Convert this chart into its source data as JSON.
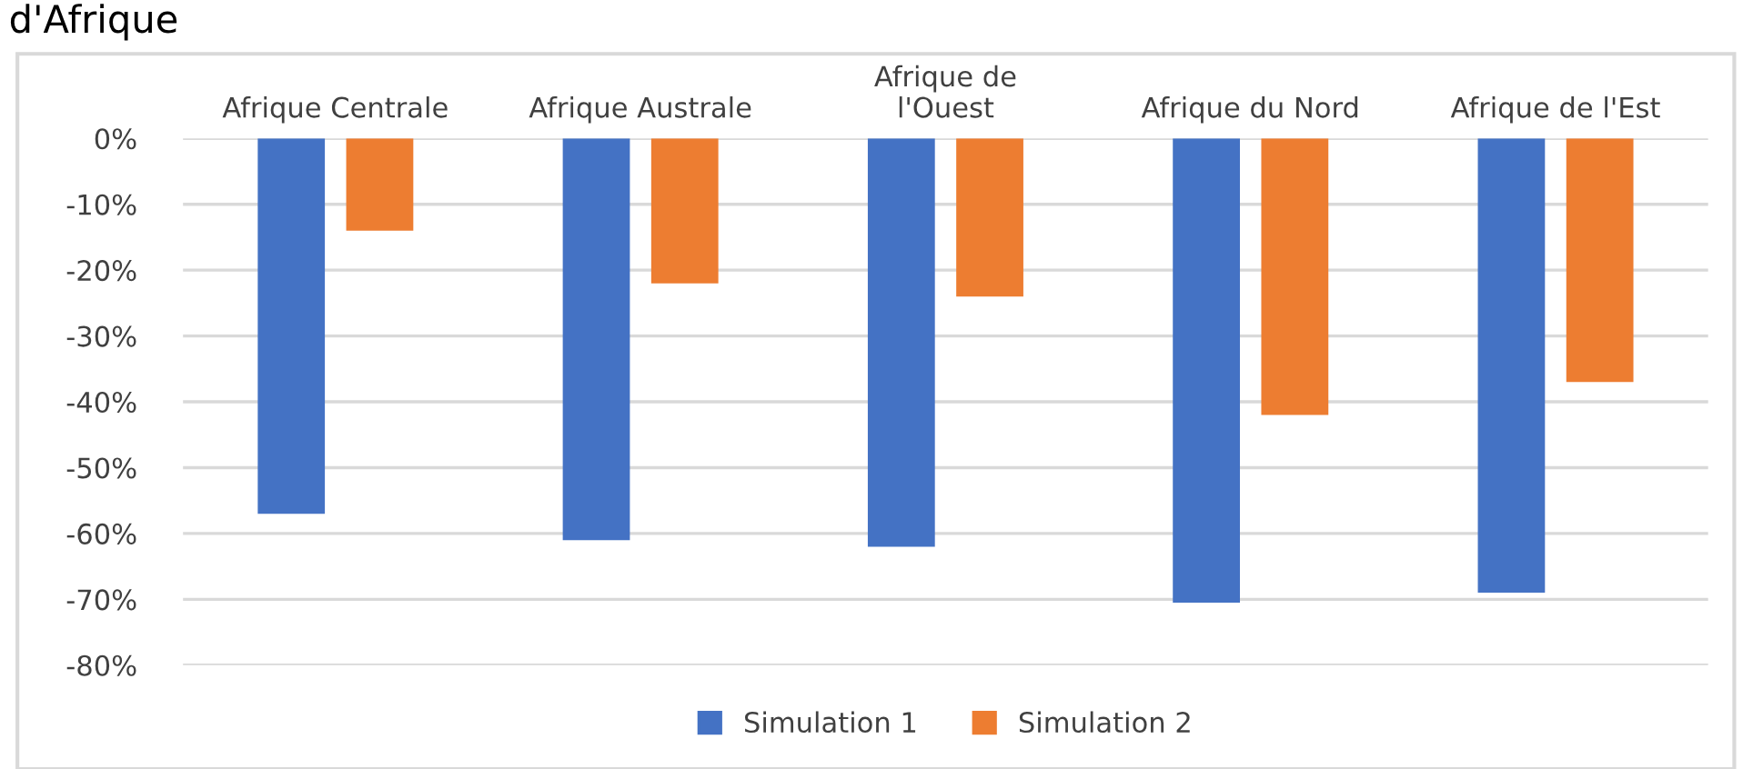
{
  "chart_data": {
    "type": "bar",
    "title": "d'Afrique",
    "categories": [
      "Afrique Centrale",
      "Afrique Australe",
      "Afrique de\nl'Ouest",
      "Afrique du Nord",
      "Afrique de l'Est"
    ],
    "series": [
      {
        "name": "Simulation 1",
        "color": "#4472c4",
        "values": [
          -57,
          -61,
          -62,
          -70.5,
          -69
        ]
      },
      {
        "name": "Simulation 2",
        "color": "#ed7d31",
        "values": [
          -14,
          -22,
          -24,
          -42,
          -37
        ]
      }
    ],
    "ylim": [
      -80,
      0
    ],
    "yticks": [
      {
        "value": 0,
        "label": "0%"
      },
      {
        "value": -10,
        "label": "-10%"
      },
      {
        "value": -20,
        "label": "-20%"
      },
      {
        "value": -30,
        "label": "-30%"
      },
      {
        "value": -40,
        "label": "-40%"
      },
      {
        "value": -50,
        "label": "-50%"
      },
      {
        "value": -60,
        "label": "-60%"
      },
      {
        "value": -70,
        "label": "-70%"
      },
      {
        "value": -80,
        "label": "-80%"
      }
    ],
    "grid": "y",
    "legend": "bottom"
  }
}
